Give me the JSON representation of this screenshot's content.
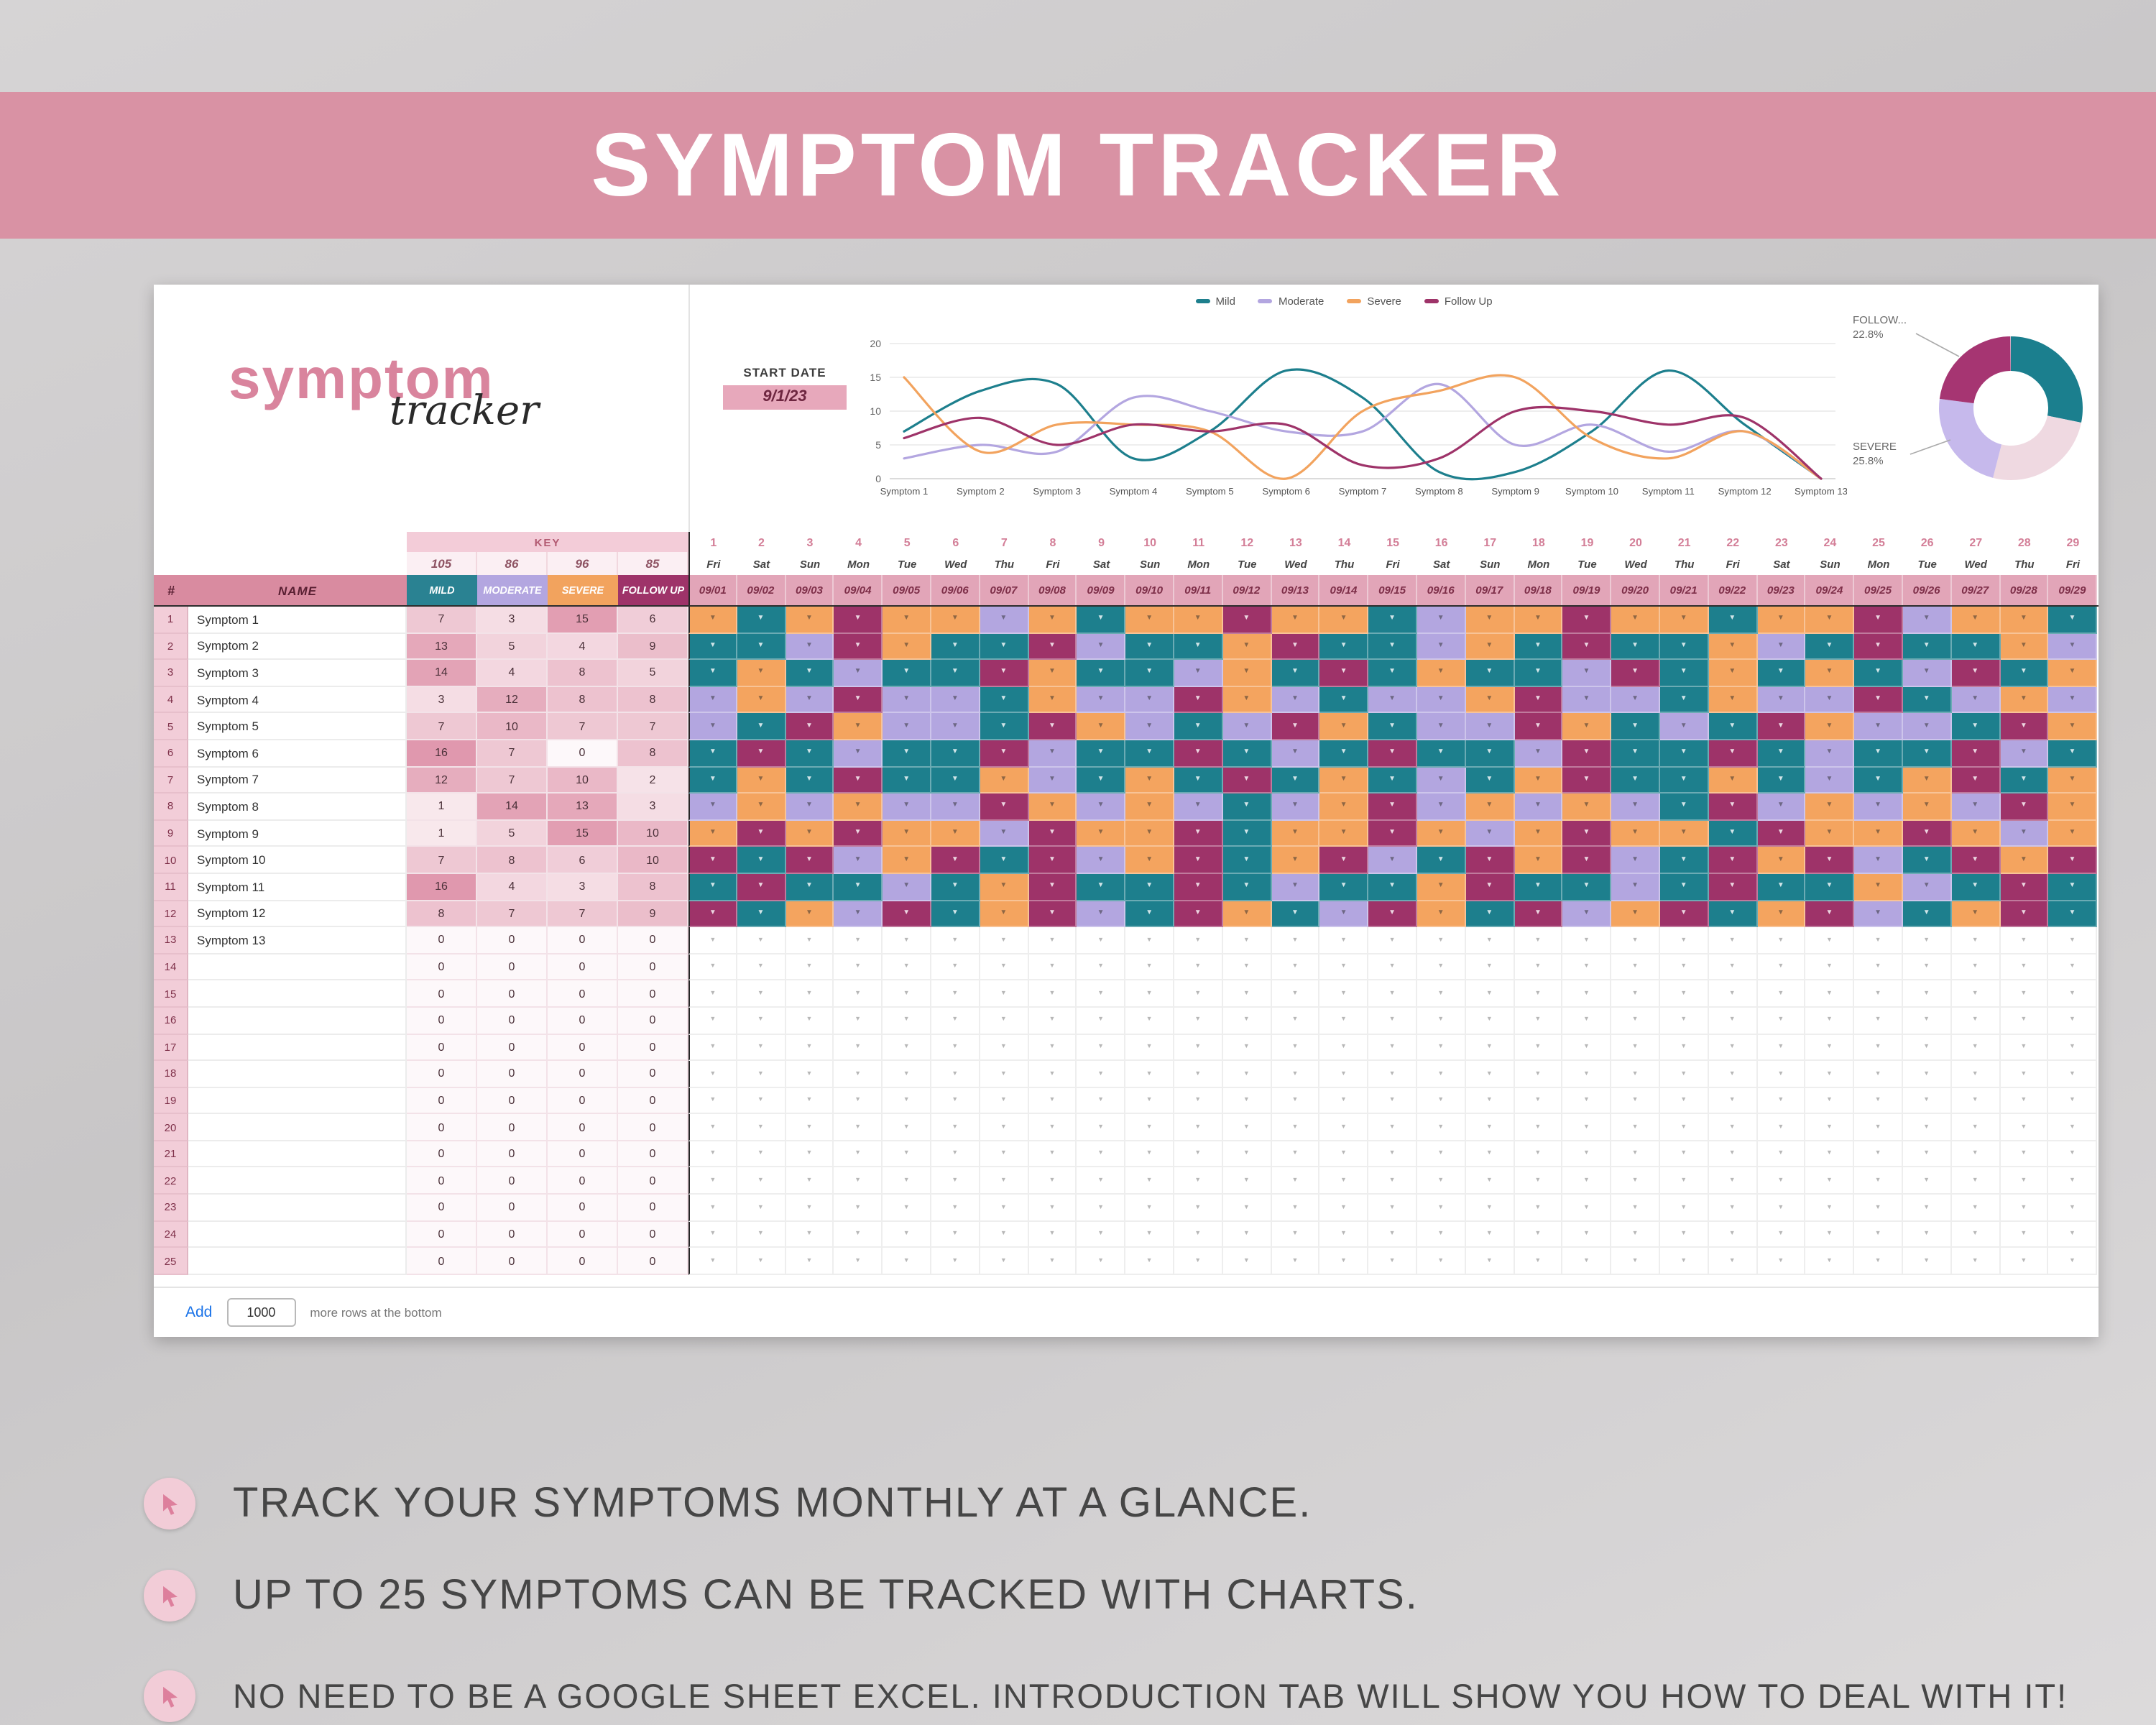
{
  "banner": {
    "title": "SYMPTOM TRACKER"
  },
  "logo": {
    "word1": "symptom",
    "word2": "tracker"
  },
  "start_date": {
    "label": "START DATE",
    "value": "9/1/23"
  },
  "colors": {
    "banner": "#d992a4",
    "header_pink": "#d98ba0",
    "date_pink": "#e2a5b8",
    "cats": [
      "#2a8292",
      "#b3a6e0",
      "#f2a35e",
      "#9e3369"
    ],
    "cells": {
      "M": "#1d7f8d",
      "D": "#b3a6e0",
      "S": "#f4a45f",
      "F": "#9e3369"
    },
    "link_blue": "#1a73e8"
  },
  "chart_data": [
    {
      "type": "line",
      "title": "",
      "categories": [
        "Symptom 1",
        "Symptom 2",
        "Symptom 3",
        "Symptom 4",
        "Symptom 5",
        "Symptom 6",
        "Symptom 7",
        "Symptom 8",
        "Symptom 9",
        "Symptom 10",
        "Symptom 11",
        "Symptom 12",
        "Symptom 13"
      ],
      "series": [
        {
          "name": "Mild",
          "color": "#1d7f8d",
          "values": [
            7,
            13,
            14,
            3,
            7,
            16,
            12,
            1,
            1,
            7,
            16,
            8,
            0
          ]
        },
        {
          "name": "Moderate",
          "color": "#b3a6e0",
          "values": [
            3,
            5,
            4,
            12,
            10,
            7,
            7,
            14,
            5,
            8,
            4,
            7,
            0
          ]
        },
        {
          "name": "Severe",
          "color": "#f2a35e",
          "values": [
            15,
            4,
            8,
            8,
            7,
            0,
            10,
            13,
            15,
            6,
            3,
            7,
            0
          ]
        },
        {
          "name": "Follow Up",
          "color": "#9e3369",
          "values": [
            6,
            9,
            5,
            8,
            7,
            8,
            2,
            3,
            10,
            10,
            8,
            9,
            0
          ]
        }
      ],
      "ylim": [
        0,
        20
      ],
      "yticks": [
        0,
        5,
        10,
        15,
        20
      ],
      "legend_position": "top",
      "grid": true
    },
    {
      "type": "pie",
      "slices": [
        {
          "name": "Mild",
          "pct": 28.2,
          "color": "#1b7f8e"
        },
        {
          "name": "Severe",
          "pct": 25.8,
          "color": "#efd9e1"
        },
        {
          "name": "Moderate",
          "pct": 23.1,
          "color": "#c6b9ec"
        },
        {
          "name": "Follow Up",
          "pct": 22.8,
          "color": "#a63572"
        }
      ],
      "labels": [
        {
          "text": "FOLLOW...",
          "pct": "22.8%"
        },
        {
          "text": "SEVERE",
          "pct": "25.8%"
        }
      ]
    }
  ],
  "table": {
    "key_label": "KEY",
    "totals": [
      "105",
      "86",
      "96",
      "85"
    ],
    "headers": {
      "num": "#",
      "name": "NAME",
      "cats": [
        "MILD",
        "MODERATE",
        "SEVERE",
        "FOLLOW UP"
      ]
    },
    "days": {
      "nums": [
        1,
        2,
        3,
        4,
        5,
        6,
        7,
        8,
        9,
        10,
        11,
        12,
        13,
        14,
        15,
        16,
        17,
        18,
        19,
        20,
        21,
        22,
        23,
        24,
        25,
        26,
        27,
        28,
        29
      ],
      "dows": [
        "Fri",
        "Sat",
        "Sun",
        "Mon",
        "Tue",
        "Wed",
        "Thu",
        "Fri",
        "Sat",
        "Sun",
        "Mon",
        "Tue",
        "Wed",
        "Thu",
        "Fri",
        "Sat",
        "Sun",
        "Mon",
        "Tue",
        "Wed",
        "Thu",
        "Fri",
        "Sat",
        "Sun",
        "Mon",
        "Tue",
        "Wed",
        "Thu",
        "Fri"
      ],
      "dates": [
        "09/01",
        "09/02",
        "09/03",
        "09/04",
        "09/05",
        "09/06",
        "09/07",
        "09/08",
        "09/09",
        "09/10",
        "09/11",
        "09/12",
        "09/13",
        "09/14",
        "09/15",
        "09/16",
        "09/17",
        "09/18",
        "09/19",
        "09/20",
        "09/21",
        "09/22",
        "09/23",
        "09/24",
        "09/25",
        "09/26",
        "09/27",
        "09/28",
        "09/29"
      ]
    },
    "rows": [
      {
        "n": 1,
        "name": "Symptom 1",
        "counts": [
          7,
          3,
          15,
          6
        ],
        "cells": "SMSFSSDSMSSFSSMDSSFSSMSSFDSSM"
      },
      {
        "n": 2,
        "name": "Symptom 2",
        "counts": [
          13,
          5,
          4,
          9
        ],
        "cells": "MMDFSMMFDMMSFMMDSMFMMSDMFMMSD"
      },
      {
        "n": 3,
        "name": "Symptom 3",
        "counts": [
          14,
          4,
          8,
          5
        ],
        "cells": "MSMDMMFSMMDSMFMSMMDFMSMSMDFMS"
      },
      {
        "n": 4,
        "name": "Symptom 4",
        "counts": [
          3,
          12,
          8,
          8
        ],
        "cells": "DSDFDDMSDDFSDMDDSFDDMSDDFMDSD"
      },
      {
        "n": 5,
        "name": "Symptom 5",
        "counts": [
          7,
          10,
          7,
          7
        ],
        "cells": "DMFSDDMFSDMDFSMDDFSMDMFSDDMFS"
      },
      {
        "n": 6,
        "name": "Symptom 6",
        "counts": [
          16,
          7,
          0,
          8
        ],
        "cells": "MFMDMMFDMMFMDMFMMDFMMFMDMMFDM"
      },
      {
        "n": 7,
        "name": "Symptom 7",
        "counts": [
          12,
          7,
          10,
          2
        ],
        "cells": "MSMFMMSDMSMFMSMDMSFMMSMDMSFMS"
      },
      {
        "n": 8,
        "name": "Symptom 8",
        "counts": [
          1,
          14,
          13,
          3
        ],
        "cells": "DSDSDDFSDSDMDSFDSDSDMFDSDSDFS"
      },
      {
        "n": 9,
        "name": "Symptom 9",
        "counts": [
          1,
          5,
          15,
          10
        ],
        "cells": "SFSFSSDFSSFMSSFSDSFSSMFSSFSDS"
      },
      {
        "n": 10,
        "name": "Symptom 10",
        "counts": [
          7,
          8,
          6,
          10
        ],
        "cells": "FMFDSFMFDSFMSFDMFSFDMFSFDMFSF"
      },
      {
        "n": 11,
        "name": "Symptom 11",
        "counts": [
          16,
          4,
          3,
          8
        ],
        "cells": "MFMMDMSFMMFMDMMSFMMDMFMMSDMFM"
      },
      {
        "n": 12,
        "name": "Symptom 12",
        "counts": [
          8,
          7,
          7,
          9
        ],
        "cells": "FMSDFMSFDMFSMDFSMFDSFMSFDMSFM"
      },
      {
        "n": 13,
        "name": "Symptom 13",
        "counts": [
          0,
          0,
          0,
          0
        ],
        "cells": ""
      },
      {
        "n": 14,
        "name": "",
        "counts": [
          0,
          0,
          0,
          0
        ],
        "cells": ""
      },
      {
        "n": 15,
        "name": "",
        "counts": [
          0,
          0,
          0,
          0
        ],
        "cells": ""
      },
      {
        "n": 16,
        "name": "",
        "counts": [
          0,
          0,
          0,
          0
        ],
        "cells": ""
      },
      {
        "n": 17,
        "name": "",
        "counts": [
          0,
          0,
          0,
          0
        ],
        "cells": ""
      },
      {
        "n": 18,
        "name": "",
        "counts": [
          0,
          0,
          0,
          0
        ],
        "cells": ""
      },
      {
        "n": 19,
        "name": "",
        "counts": [
          0,
          0,
          0,
          0
        ],
        "cells": ""
      },
      {
        "n": 20,
        "name": "",
        "counts": [
          0,
          0,
          0,
          0
        ],
        "cells": ""
      },
      {
        "n": 21,
        "name": "",
        "counts": [
          0,
          0,
          0,
          0
        ],
        "cells": ""
      },
      {
        "n": 22,
        "name": "",
        "counts": [
          0,
          0,
          0,
          0
        ],
        "cells": ""
      },
      {
        "n": 23,
        "name": "",
        "counts": [
          0,
          0,
          0,
          0
        ],
        "cells": ""
      },
      {
        "n": 24,
        "name": "",
        "counts": [
          0,
          0,
          0,
          0
        ],
        "cells": ""
      },
      {
        "n": 25,
        "name": "",
        "counts": [
          0,
          0,
          0,
          0
        ],
        "cells": ""
      }
    ]
  },
  "footer": {
    "add_label": "Add",
    "rows_value": "1000",
    "rows_note": "more rows at the bottom"
  },
  "bullets": [
    {
      "text": "TRACK YOUR SYMPTOMS MONTHLY AT A GLANCE."
    },
    {
      "text": "UP TO 25 SYMPTOMS CAN BE TRACKED WITH CHARTS."
    },
    {
      "text": "NO NEED TO BE A GOOGLE SHEET EXCEL. INTRODUCTION TAB WILL SHOW YOU HOW TO DEAL WITH IT!"
    }
  ]
}
